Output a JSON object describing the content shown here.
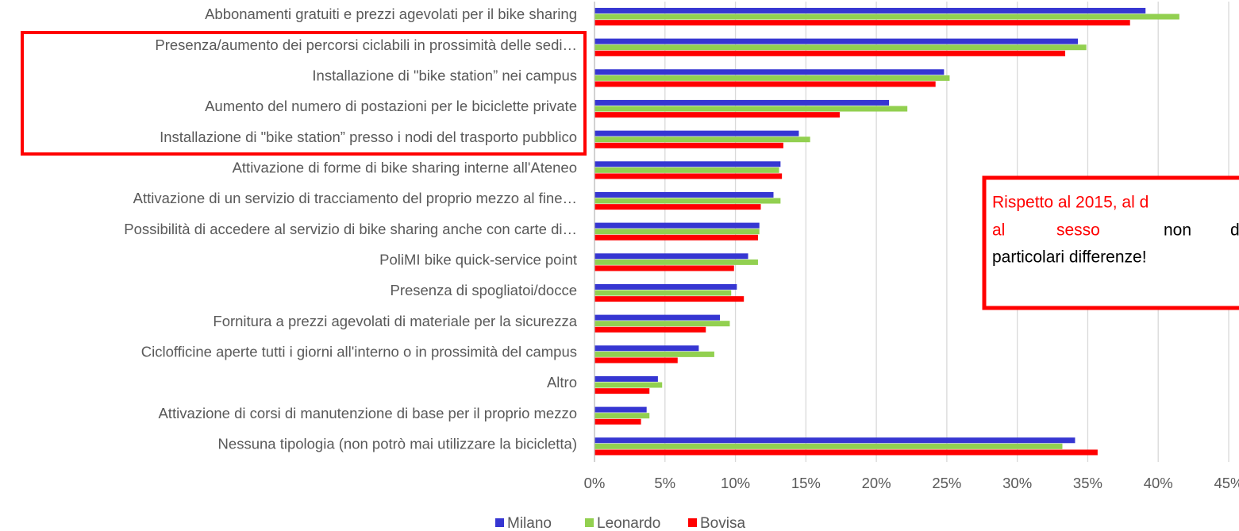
{
  "chart_data": {
    "type": "bar",
    "orientation": "horizontal",
    "categories": [
      "Abbonamenti gratuiti e prezzi agevolati per il bike sharing",
      "Presenza/aumento dei percorsi ciclabili in prossimità delle sedi…",
      "Installazione di \"bike station” nei campus",
      "Aumento del numero di postazioni per le biciclette private",
      "Installazione di \"bike station” presso i nodi del trasporto pubblico",
      "Attivazione di forme di bike sharing interne all'Ateneo",
      "Attivazione di un servizio di tracciamento del proprio mezzo al fine…",
      "Possibilità di accedere al servizio di bike sharing anche con carte di…",
      "PoliMI bike quick-service point",
      "Presenza di spogliatoi/docce",
      "Fornitura a prezzi agevolati di materiale per la sicurezza",
      "Ciclofficine aperte tutti i giorni all'interno o in prossimità del campus",
      "Altro",
      "Attivazione di corsi di manutenzione di base per il proprio mezzo",
      "Nessuna tipologia (non potrò mai utilizzare la bicicletta)"
    ],
    "series": [
      {
        "name": "Milano",
        "color": "#3636d2",
        "values": [
          39.1,
          34.3,
          24.8,
          20.9,
          14.5,
          13.2,
          12.7,
          11.7,
          10.9,
          10.1,
          8.9,
          7.4,
          4.5,
          3.7,
          34.1
        ]
      },
      {
        "name": "Leonardo",
        "color": "#92d050",
        "values": [
          41.5,
          34.9,
          25.2,
          22.2,
          15.3,
          13.1,
          13.2,
          11.7,
          11.6,
          9.7,
          9.6,
          8.5,
          4.8,
          3.9,
          33.2
        ]
      },
      {
        "name": "Bovisa",
        "color": "#ff0000",
        "values": [
          38.0,
          33.4,
          24.2,
          17.4,
          13.4,
          13.3,
          11.8,
          11.6,
          9.9,
          10.6,
          7.9,
          5.9,
          3.9,
          3.3,
          35.7
        ]
      }
    ],
    "xlim": [
      0,
      45
    ],
    "xticks": [
      {
        "value": 0,
        "label": "0%"
      },
      {
        "value": 5,
        "label": "5%"
      },
      {
        "value": 10,
        "label": "10%"
      },
      {
        "value": 15,
        "label": "15%"
      },
      {
        "value": 20,
        "label": "20%"
      },
      {
        "value": 25,
        "label": "25%"
      },
      {
        "value": 30,
        "label": "30%"
      },
      {
        "value": 35,
        "label": "35%"
      },
      {
        "value": 40,
        "label": "40%"
      },
      {
        "value": 45,
        "label": "45%"
      }
    ],
    "grid": true,
    "legend": "bottom",
    "annotation": [
      [
        "Rispetto al 2015, al d"
      ],
      [
        "al",
        "sesso",
        "non",
        "d"
      ],
      [
        "particolari differenze!"
      ]
    ]
  }
}
